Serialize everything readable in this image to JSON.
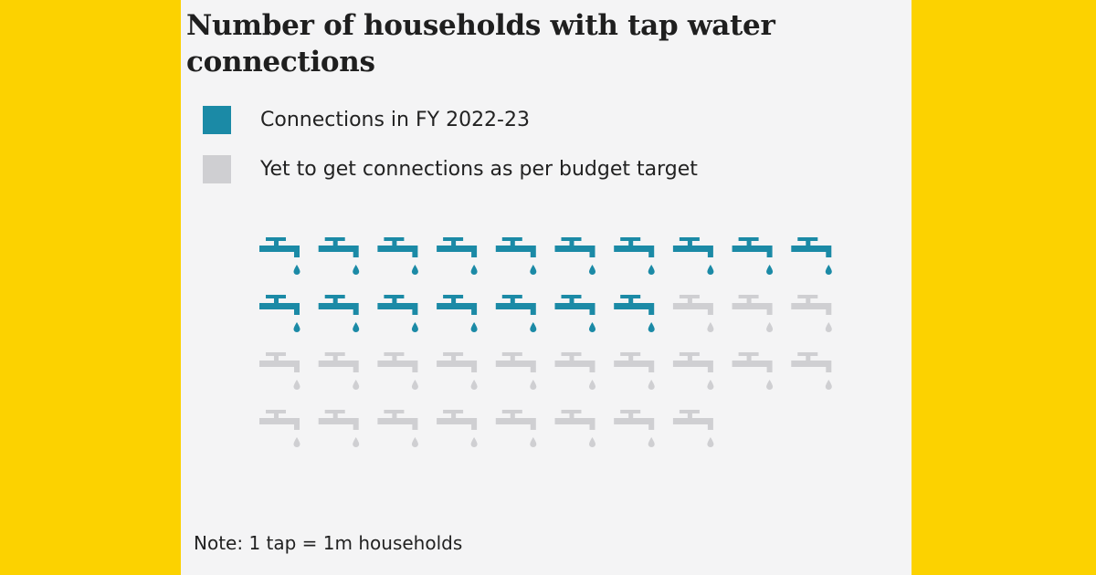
{
  "chart_data": {
    "type": "pictogram",
    "title": "Number of households with tap water connections",
    "unit": "1 tap = 1m households",
    "series": [
      {
        "name": "Connections in FY 2022-23",
        "value": 17,
        "color": "#1b8aa6"
      },
      {
        "name": "Yet to get connections as per budget target",
        "value": 21,
        "color": "#cfcfd2"
      }
    ],
    "icons_per_row": 10
  },
  "legend": [
    {
      "label": "Connections in FY 2022-23",
      "color": "#1b8aa6"
    },
    {
      "label": "Yet to get connections as per budget target",
      "color": "#cfcfd2"
    }
  ],
  "note": "Note: 1 tap = 1m households",
  "colors": {
    "background": "#fcd200",
    "panel": "#f4f4f5"
  }
}
